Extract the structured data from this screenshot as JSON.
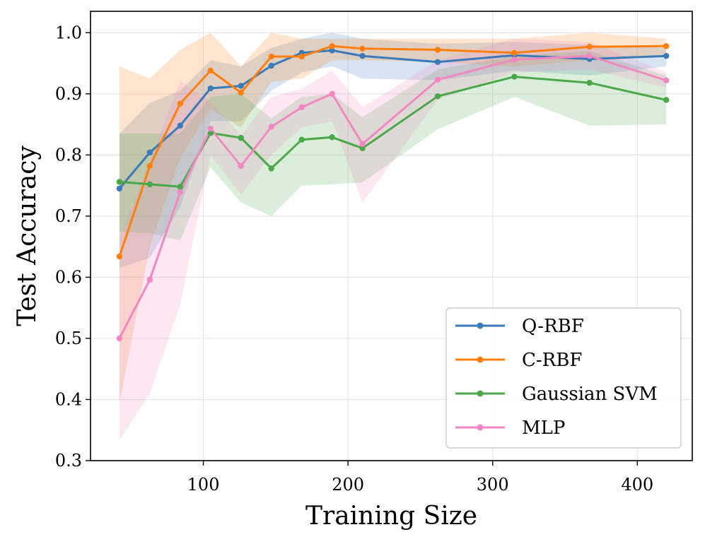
{
  "chart_data": {
    "type": "line",
    "title": "",
    "xlabel": "Training Size",
    "ylabel": "Test Accuracy",
    "xlim": [
      22,
      438
    ],
    "ylim": [
      0.3,
      1.035
    ],
    "xticks": [
      100,
      200,
      300,
      400
    ],
    "yticks": [
      0.3,
      0.4,
      0.5,
      0.6,
      0.7,
      0.8,
      0.9,
      1.0
    ],
    "xtick_labels": [
      "100",
      "200",
      "300",
      "400"
    ],
    "ytick_labels": [
      "0.3",
      "0.4",
      "0.5",
      "0.6",
      "0.7",
      "0.8",
      "0.9",
      "1.0"
    ],
    "grid": true,
    "legend_position": "lower-right",
    "x": [
      42,
      63,
      84,
      105,
      126,
      147,
      168,
      189,
      210,
      262,
      315,
      367,
      420
    ],
    "series": [
      {
        "name": "Q-RBF",
        "color": "#3a7ab8",
        "values": [
          0.745,
          0.804,
          0.848,
          0.909,
          0.913,
          0.946,
          0.967,
          0.971,
          0.962,
          0.952,
          0.963,
          0.957,
          0.962
        ],
        "lower": [
          0.615,
          0.632,
          0.715,
          0.855,
          0.855,
          0.905,
          0.935,
          0.945,
          0.925,
          0.922,
          0.938,
          0.93,
          0.945
        ],
        "upper": [
          0.835,
          0.885,
          0.905,
          0.955,
          0.945,
          0.975,
          0.99,
          1.0,
          0.99,
          0.982,
          0.985,
          0.98,
          0.975
        ]
      },
      {
        "name": "C-RBF",
        "color": "#ff7f0e",
        "values": [
          0.634,
          0.782,
          0.884,
          0.938,
          0.902,
          0.961,
          0.961,
          0.978,
          0.974,
          0.972,
          0.967,
          0.977,
          0.978
        ],
        "lower": [
          0.395,
          0.65,
          0.795,
          0.875,
          0.845,
          0.92,
          0.925,
          0.955,
          0.955,
          0.952,
          0.945,
          0.955,
          0.962
        ],
        "upper": [
          0.945,
          0.925,
          0.972,
          1.0,
          0.945,
          1.0,
          0.99,
          0.99,
          0.99,
          0.99,
          0.99,
          1.0,
          0.99
        ]
      },
      {
        "name": "Gaussian SVM",
        "color": "#4aa84a",
        "values": [
          0.756,
          0.752,
          0.748,
          0.836,
          0.828,
          0.778,
          0.825,
          0.829,
          0.811,
          0.896,
          0.928,
          0.918,
          0.89
        ],
        "lower": [
          0.675,
          0.672,
          0.66,
          0.78,
          0.722,
          0.7,
          0.75,
          0.752,
          0.755,
          0.842,
          0.895,
          0.848,
          0.85
        ],
        "upper": [
          0.835,
          0.835,
          0.835,
          0.895,
          0.9,
          0.86,
          0.895,
          0.9,
          0.862,
          0.94,
          0.962,
          0.97,
          0.93
        ]
      },
      {
        "name": "MLP",
        "color": "#f287c4",
        "values": [
          0.5,
          0.596,
          0.739,
          0.843,
          0.782,
          0.846,
          0.878,
          0.9,
          0.818,
          0.923,
          0.956,
          0.962,
          0.922
        ],
        "lower": [
          0.333,
          0.41,
          0.555,
          0.8,
          0.735,
          0.8,
          0.845,
          0.855,
          0.722,
          0.89,
          0.935,
          0.94,
          0.91
        ],
        "upper": [
          0.665,
          0.79,
          0.92,
          0.888,
          0.832,
          0.895,
          0.908,
          0.938,
          0.878,
          0.955,
          0.99,
          0.985,
          0.935
        ]
      }
    ]
  }
}
